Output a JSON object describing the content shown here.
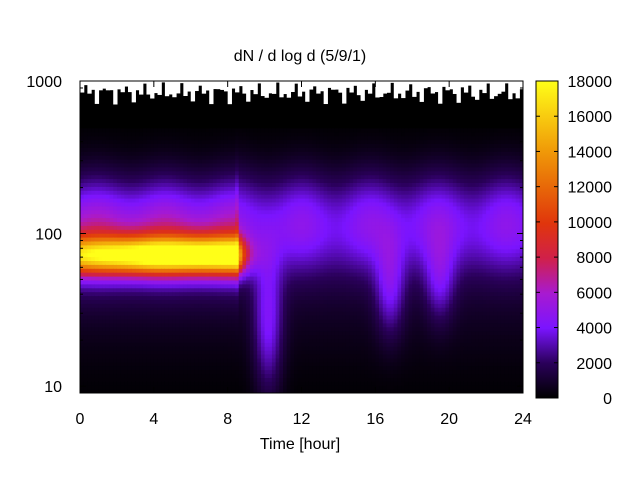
{
  "chart_data": {
    "type": "heatmap",
    "title": "dN / d log d (5/9/1)",
    "xlabel": "Time [hour]",
    "ylabel": "",
    "x_range": [
      0,
      24
    ],
    "x_ticks": [
      0,
      4,
      8,
      12,
      16,
      20,
      24
    ],
    "y_range": [
      9,
      1000
    ],
    "y_scale": "log",
    "y_ticks": [
      10,
      100,
      1000
    ],
    "colorbar": {
      "range": [
        0,
        18000
      ],
      "ticks": [
        0,
        2000,
        4000,
        6000,
        8000,
        10000,
        12000,
        14000,
        16000,
        18000
      ],
      "colormap": "black-purple-red-orange-yellow"
    },
    "features": [
      {
        "type": "peak",
        "time_start": 0,
        "time_end": 8.5,
        "diameter_center": 72,
        "value_max": 16000
      },
      {
        "type": "band",
        "time_start": 8.5,
        "time_end": 24,
        "diameter_center": 130,
        "value": 3500
      },
      {
        "type": "plume",
        "time_center": 10.2,
        "diameter_low": 11,
        "diameter_high": 60,
        "value": 3500
      },
      {
        "type": "plume",
        "time_center": 16.8,
        "diameter_low": 25,
        "diameter_high": 80,
        "value": 3000
      },
      {
        "type": "plume",
        "time_center": 19.5,
        "diameter_low": 30,
        "diameter_high": 80,
        "value": 2500
      }
    ],
    "grid": false,
    "legend": "colorbar-right"
  }
}
